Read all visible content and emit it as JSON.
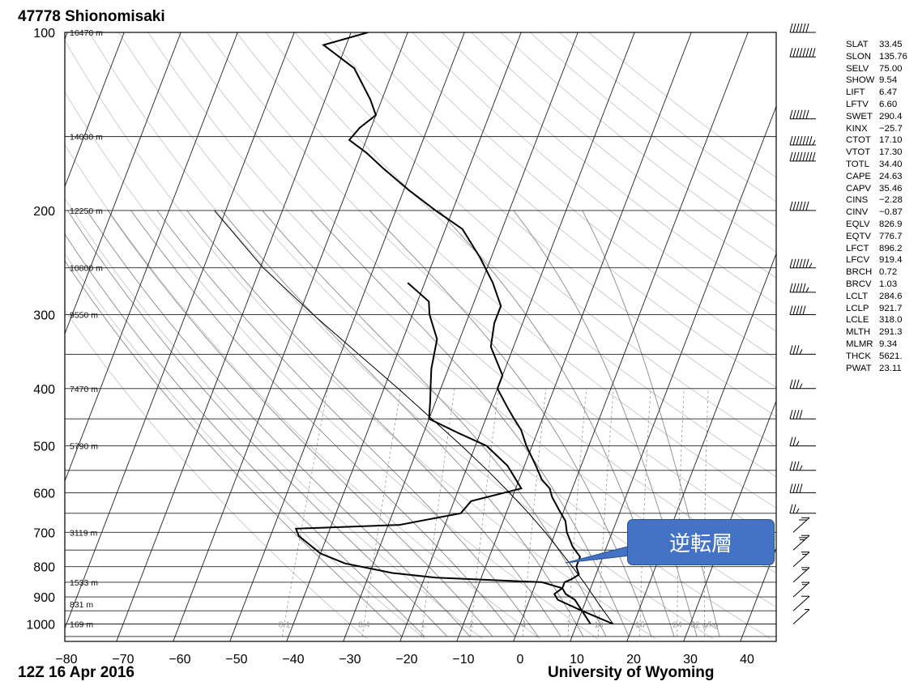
{
  "station": "47778  Shionomisaki",
  "datetime": "12Z 16 Apr 2016",
  "credit": "University of Wyoming",
  "annotation": {
    "text": "逆転層"
  },
  "indices": [
    {
      "key": "SLAT",
      "value": "33.45"
    },
    {
      "key": "SLON",
      "value": "135.76"
    },
    {
      "key": "SELV",
      "value": "75.00"
    },
    {
      "key": "SHOW",
      "value": "9.54"
    },
    {
      "key": "LIFT",
      "value": "6.47"
    },
    {
      "key": "LFTV",
      "value": "6.60"
    },
    {
      "key": "SWET",
      "value": "290.4"
    },
    {
      "key": "KINX",
      "value": "−25.7"
    },
    {
      "key": "CTOT",
      "value": "17.10"
    },
    {
      "key": "VTOT",
      "value": "17.30"
    },
    {
      "key": "TOTL",
      "value": "34.40"
    },
    {
      "key": "CAPE",
      "value": "24.63"
    },
    {
      "key": "CAPV",
      "value": "35.46"
    },
    {
      "key": "CINS",
      "value": "−2.28"
    },
    {
      "key": "CINV",
      "value": "−0.87"
    },
    {
      "key": "EQLV",
      "value": "826.9"
    },
    {
      "key": "EQTV",
      "value": "776.7"
    },
    {
      "key": "LFCT",
      "value": "896.2"
    },
    {
      "key": "LFCV",
      "value": "919.4"
    },
    {
      "key": "BRCH",
      "value": "0.72"
    },
    {
      "key": "BRCV",
      "value": "1.03"
    },
    {
      "key": "LCLT",
      "value": "284.6"
    },
    {
      "key": "LCLP",
      "value": "921.7"
    },
    {
      "key": "LCLE",
      "value": "318.0"
    },
    {
      "key": "MLTH",
      "value": "291.3"
    },
    {
      "key": "MLMR",
      "value": "9.34"
    },
    {
      "key": "THCK",
      "value": "5621."
    },
    {
      "key": "PWAT",
      "value": "23.11"
    }
  ],
  "chart_data": {
    "type": "line",
    "title": "47778  Shionomisaki",
    "xlim": [
      -80,
      45
    ],
    "ylim": [
      1050,
      100
    ],
    "y_scale": "log",
    "x_ticks": [
      "−80",
      "−70",
      "−60",
      "−50",
      "−40",
      "−30",
      "−20",
      "−10",
      "0",
      "10",
      "20",
      "30",
      "40"
    ],
    "x_tick_values": [
      -80,
      -70,
      -60,
      -50,
      -40,
      -30,
      -20,
      -10,
      0,
      10,
      20,
      30,
      40
    ],
    "y_ticks": [
      "100",
      "200",
      "300",
      "400",
      "500",
      "600",
      "700",
      "800",
      "900",
      "1000"
    ],
    "y_tick_values": [
      100,
      200,
      300,
      400,
      500,
      600,
      700,
      800,
      900,
      1000
    ],
    "height_labels": [
      {
        "p": 100,
        "label": "16470 m"
      },
      {
        "p": 150,
        "label": "14030 m"
      },
      {
        "p": 200,
        "label": "12250 m"
      },
      {
        "p": 250,
        "label": "10800 m"
      },
      {
        "p": 300,
        "label": "9550 m"
      },
      {
        "p": 400,
        "label": "7470 m"
      },
      {
        "p": 500,
        "label": "5790 m"
      },
      {
        "p": 700,
        "label": "3119 m"
      },
      {
        "p": 850,
        "label": "1533 m"
      },
      {
        "p": 925,
        "label": "831 m"
      },
      {
        "p": 1000,
        "label": "169 m"
      }
    ],
    "mixing_ratio_labels": [
      "0.1",
      "0.4",
      "1",
      "2",
      "4",
      "7",
      "10",
      "16",
      "24",
      "32"
    ],
    "mixing_ratio_units": "g/kg",
    "gridlines": {
      "isobars": true,
      "isotherms": true,
      "dry_adiabats": true,
      "moist_adiabats": true,
      "mixing_ratio": true
    },
    "series": [
      {
        "role": "temperature",
        "color": "#000000",
        "points": [
          [
            100,
            -67
          ],
          [
            105,
            -74
          ],
          [
            115,
            -67
          ],
          [
            130,
            -62
          ],
          [
            138,
            -60
          ],
          [
            145,
            -62
          ],
          [
            152,
            -63
          ],
          [
            160,
            -59
          ],
          [
            170,
            -55
          ],
          [
            185,
            -49
          ],
          [
            200,
            -43
          ],
          [
            215,
            -37
          ],
          [
            240,
            -32
          ],
          [
            265,
            -28
          ],
          [
            290,
            -25
          ],
          [
            310,
            -25
          ],
          [
            340,
            -24
          ],
          [
            380,
            -20
          ],
          [
            400,
            -20
          ],
          [
            430,
            -17
          ],
          [
            450,
            -15
          ],
          [
            470,
            -13
          ],
          [
            500,
            -11
          ],
          [
            540,
            -8
          ],
          [
            570,
            -6
          ],
          [
            590,
            -4
          ],
          [
            610,
            -3
          ],
          [
            640,
            -1
          ],
          [
            670,
            1
          ],
          [
            700,
            2
          ],
          [
            740,
            4
          ],
          [
            770,
            6
          ],
          [
            800,
            6
          ],
          [
            825,
            7
          ],
          [
            840,
            6
          ],
          [
            850,
            5
          ],
          [
            870,
            5
          ],
          [
            890,
            4
          ],
          [
            910,
            5
          ],
          [
            950,
            10
          ],
          [
            1000,
            16.4
          ]
        ]
      },
      {
        "role": "dewpoint",
        "color": "#000000",
        "points": [
          [
            265,
            -43
          ],
          [
            285,
            -38
          ],
          [
            300,
            -37
          ],
          [
            330,
            -34
          ],
          [
            370,
            -33
          ],
          [
            395,
            -32
          ],
          [
            420,
            -31
          ],
          [
            450,
            -30
          ],
          [
            475,
            -24
          ],
          [
            500,
            -18
          ],
          [
            540,
            -13
          ],
          [
            590,
            -9
          ],
          [
            620,
            -17
          ],
          [
            650,
            -18
          ],
          [
            680,
            -28
          ],
          [
            690,
            -46
          ],
          [
            710,
            -45
          ],
          [
            760,
            -40
          ],
          [
            790,
            -35
          ],
          [
            820,
            -26
          ],
          [
            835,
            -18
          ],
          [
            850,
            1
          ],
          [
            870,
            5
          ],
          [
            890,
            6
          ],
          [
            910,
            8
          ],
          [
            950,
            10
          ],
          [
            1000,
            12.4
          ]
        ]
      },
      {
        "role": "parcel",
        "color": "#000000",
        "points": [
          [
            1000,
            16.4
          ],
          [
            925,
            12.5
          ],
          [
            900,
            11.2
          ],
          [
            850,
            8.4
          ],
          [
            800,
            5.3
          ],
          [
            750,
            1.9
          ],
          [
            700,
            -1.8
          ],
          [
            650,
            -6.0
          ],
          [
            600,
            -10.8
          ],
          [
            550,
            -16.2
          ],
          [
            500,
            -22.4
          ],
          [
            450,
            -29.5
          ],
          [
            400,
            -37.5
          ],
          [
            350,
            -46.8
          ],
          [
            300,
            -57.5
          ],
          [
            250,
            -69.5
          ],
          [
            200,
            -82
          ]
        ]
      }
    ],
    "wind_barbs": [
      {
        "p": 100,
        "kt": 60
      },
      {
        "p": 110,
        "kt": 80
      },
      {
        "p": 140,
        "kt": 60
      },
      {
        "p": 155,
        "kt": 75
      },
      {
        "p": 165,
        "kt": 80
      },
      {
        "p": 200,
        "kt": 60
      },
      {
        "p": 250,
        "kt": 65
      },
      {
        "p": 275,
        "kt": 55
      },
      {
        "p": 300,
        "kt": 50
      },
      {
        "p": 350,
        "kt": 35
      },
      {
        "p": 400,
        "kt": 35
      },
      {
        "p": 450,
        "kt": 40
      },
      {
        "p": 500,
        "kt": 25
      },
      {
        "p": 550,
        "kt": 35
      },
      {
        "p": 600,
        "kt": 40
      },
      {
        "p": 650,
        "kt": 25
      },
      {
        "p": 700,
        "kt": 20
      },
      {
        "p": 750,
        "kt": 25
      },
      {
        "p": 800,
        "kt": 15
      },
      {
        "p": 850,
        "kt": 15
      },
      {
        "p": 900,
        "kt": 15
      },
      {
        "p": 950,
        "kt": 10
      },
      {
        "p": 1000,
        "kt": 5
      }
    ]
  }
}
